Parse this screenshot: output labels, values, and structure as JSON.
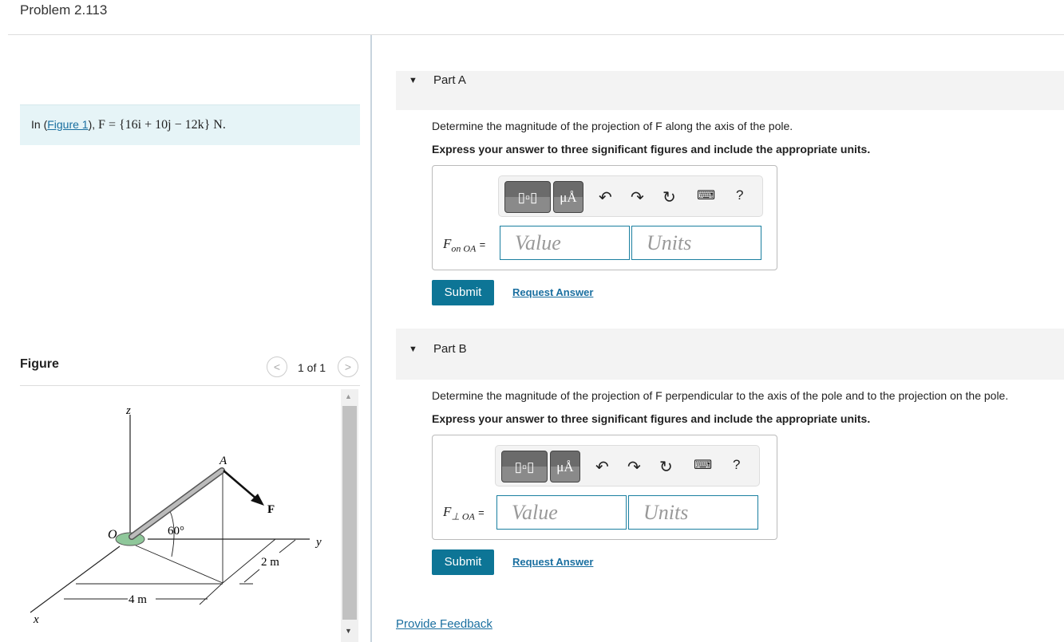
{
  "title": "Problem 2.113",
  "intro": {
    "prefix": "In (",
    "link": "Figure 1",
    "suffix": "),",
    "equation": "F = {16i + 10j − 12k} N."
  },
  "figure": {
    "label": "Figure",
    "counter": "1 of 1",
    "prev_icon": "chevron-left-icon",
    "next_icon": "chevron-right-icon",
    "labels": {
      "z": "z",
      "x": "x",
      "y": "y",
      "O": "O",
      "A": "A",
      "F": "F",
      "angle": "60°",
      "dim_x": "4 m",
      "dim_y": "2 m"
    }
  },
  "parts": [
    {
      "label": "Part A",
      "question": "Determine the magnitude of the projection of F along the axis of the pole.",
      "instruction": "Express your answer to three significant figures and include the appropriate units.",
      "var": "F",
      "sub": "on OA",
      "eq": "=",
      "value_placeholder": "Value",
      "units_placeholder": "Units",
      "submit": "Submit",
      "request": "Request Answer"
    },
    {
      "label": "Part B",
      "question": "Determine the magnitude of the projection of F perpendicular to the axis of the pole and to the projection on the pole.",
      "instruction": "Express your answer to three significant figures and include the appropriate units.",
      "var": "F",
      "sub": "⊥ OA",
      "eq": "=",
      "value_placeholder": "Value",
      "units_placeholder": "Units",
      "submit": "Submit",
      "request": "Request Answer"
    }
  ],
  "toolbar": {
    "units_btn": "μÅ",
    "help": "?"
  },
  "feedback": "Provide Feedback",
  "colors": {
    "accent": "#0d7596",
    "link": "#1a6fa0",
    "intro_bg": "#e6f4f7"
  }
}
